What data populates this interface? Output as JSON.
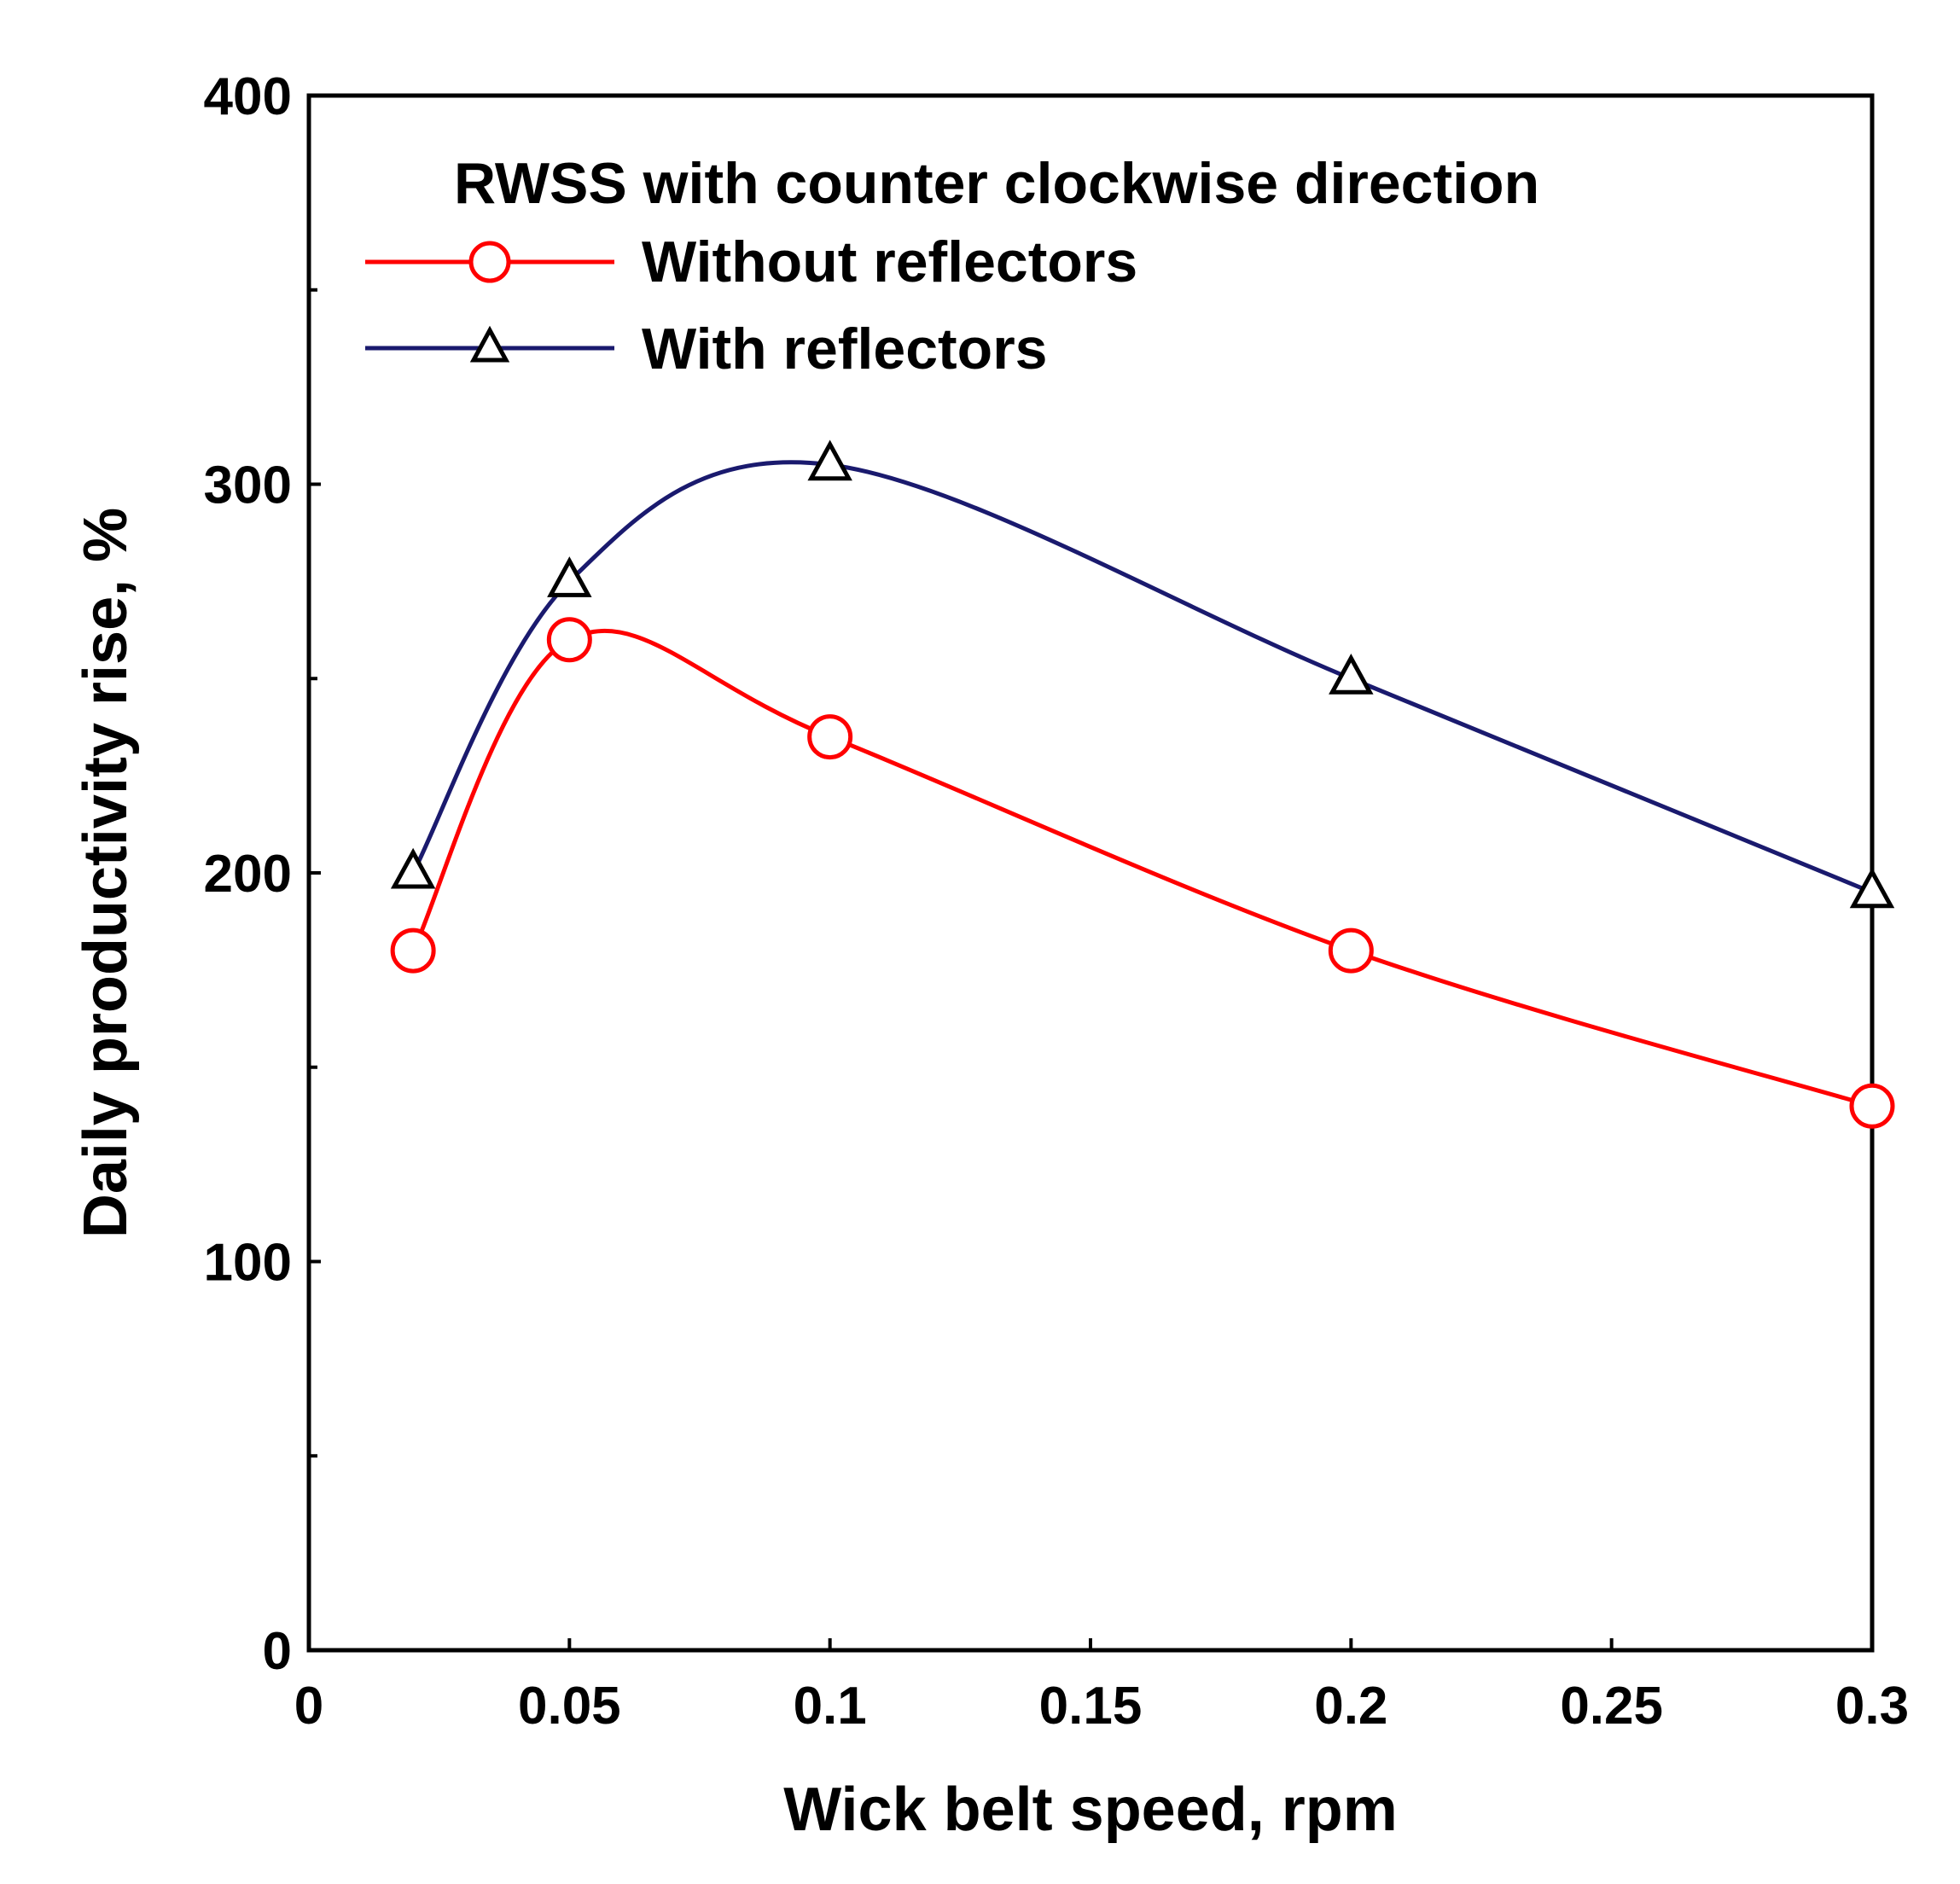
{
  "chart_data": {
    "type": "line",
    "title": "",
    "legend_title": "RWSS with counter clockwise direction",
    "xlabel": "Wick belt speed, rpm",
    "ylabel": "Daily productivity rise, %",
    "xlim": [
      0,
      0.3
    ],
    "ylim": [
      0,
      400
    ],
    "x_ticks": [
      0,
      0.05,
      0.1,
      0.15,
      0.2,
      0.25,
      0.3
    ],
    "x_tick_labels": [
      "0",
      "0.05",
      "0.1",
      "0.15",
      "0.2",
      "0.25",
      "0.3"
    ],
    "y_ticks": [
      0,
      100,
      200,
      300,
      400
    ],
    "y_tick_labels": [
      "0",
      "100",
      "200",
      "300",
      "400"
    ],
    "y_minor_ticks": [
      50,
      150,
      250,
      350
    ],
    "grid": false,
    "legend_position": "top",
    "series": [
      {
        "name": "Without reflectors",
        "color": "#ff0000",
        "marker": "circle",
        "x": [
          0.02,
          0.05,
          0.1,
          0.2,
          0.3
        ],
        "y": [
          180,
          260,
          235,
          180,
          140
        ]
      },
      {
        "name": "With reflectors",
        "color": "#1a1a6e",
        "marker": "triangle",
        "x": [
          0.02,
          0.05,
          0.1,
          0.2,
          0.3
        ],
        "y": [
          200,
          275,
          305,
          250,
          195
        ]
      }
    ]
  }
}
